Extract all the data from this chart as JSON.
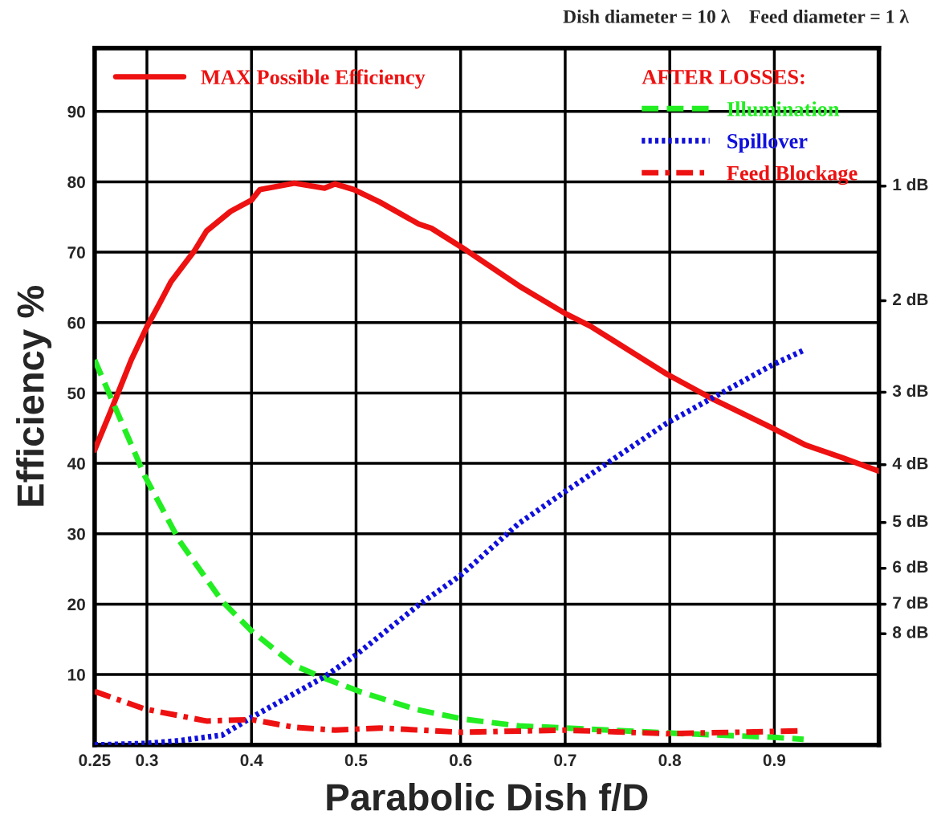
{
  "chart_data": {
    "type": "line",
    "title": "Dish diameter = 10 λ    Feed diameter = 1 λ",
    "xlabel": "Parabolic Dish f/D",
    "ylabel": "Efficiency %",
    "legend_title": "AFTER LOSSES:",
    "xlim": [
      0.25,
      1.0
    ],
    "xticks": [
      0.25,
      0.3,
      0.4,
      0.5,
      0.6,
      0.7,
      0.8,
      0.9
    ],
    "ylim": [
      0,
      99
    ],
    "yticks": [
      10,
      20,
      30,
      40,
      50,
      60,
      70,
      80,
      90
    ],
    "ref_lines": [
      {
        "axis": "y",
        "value": 79.4,
        "label": "1 dB"
      },
      {
        "axis": "y",
        "value": 63.1,
        "label": "2 dB"
      },
      {
        "axis": "y",
        "value": 50.1,
        "label": "3 dB"
      },
      {
        "axis": "y",
        "value": 39.8,
        "label": "4 dB"
      },
      {
        "axis": "y",
        "value": 31.6,
        "label": "5 dB"
      },
      {
        "axis": "y",
        "value": 25.1,
        "label": "6 dB"
      },
      {
        "axis": "y",
        "value": 20.0,
        "label": "7 dB"
      },
      {
        "axis": "y",
        "value": 15.8,
        "label": "8 dB"
      }
    ],
    "grid": true,
    "legend": "top",
    "series": [
      {
        "name": "MAX Possible Efficiency",
        "color": "#ee1111",
        "line_style": "solid",
        "x": [
          0.25,
          0.267,
          0.285,
          0.3,
          0.312,
          0.323,
          0.345,
          0.357,
          0.38,
          0.4,
          0.408,
          0.441,
          0.47,
          0.48,
          0.498,
          0.523,
          0.56,
          0.572,
          0.601,
          0.656,
          0.7,
          0.724,
          0.797,
          0.839,
          0.897,
          0.93,
          0.965,
          1.0
        ],
        "values": [
          41.9,
          48,
          54.7,
          59.4,
          62.7,
          65.8,
          70.1,
          73,
          75.8,
          77.4,
          78.9,
          79.8,
          79.1,
          79.7,
          78.9,
          77.1,
          74,
          73.4,
          70.7,
          65.2,
          61.3,
          59.5,
          52.7,
          49.3,
          45.1,
          42.6,
          40.8,
          38.9
        ]
      },
      {
        "name": "Illumination",
        "color": "#22ee22",
        "line_style": "dashed",
        "x": [
          0.25,
          0.298,
          0.331,
          0.372,
          0.4,
          0.441,
          0.466,
          0.503,
          0.556,
          0.601,
          0.656,
          0.7,
          0.797,
          0.897,
          0.928
        ],
        "values": [
          54.7,
          38.2,
          29,
          20.4,
          16.2,
          11.3,
          9.7,
          7.6,
          5.1,
          3.7,
          2.7,
          2.4,
          1.7,
          1.1,
          0.8
        ]
      },
      {
        "name": "Spillover",
        "color": "#1010dd",
        "line_style": "dotted",
        "x": [
          0.25,
          0.298,
          0.331,
          0.372,
          0.4,
          0.441,
          0.47,
          0.5,
          0.56,
          0.6,
          0.656,
          0.7,
          0.797,
          0.897,
          0.927
        ],
        "values": [
          0,
          0.2,
          0.6,
          1.4,
          3.9,
          7.3,
          9.7,
          12.8,
          19.9,
          24.1,
          31.5,
          36,
          45.7,
          53.9,
          56
        ]
      },
      {
        "name": "Feed Blockage",
        "color": "#ee1111",
        "line_style": "dashdot",
        "x": [
          0.25,
          0.298,
          0.357,
          0.4,
          0.441,
          0.48,
          0.523,
          0.6,
          0.7,
          0.797,
          0.897,
          0.925
        ],
        "values": [
          7.6,
          5.1,
          3.4,
          3.6,
          2.5,
          2.1,
          2.4,
          1.8,
          2.1,
          1.6,
          1.9,
          2.0
        ]
      }
    ]
  }
}
